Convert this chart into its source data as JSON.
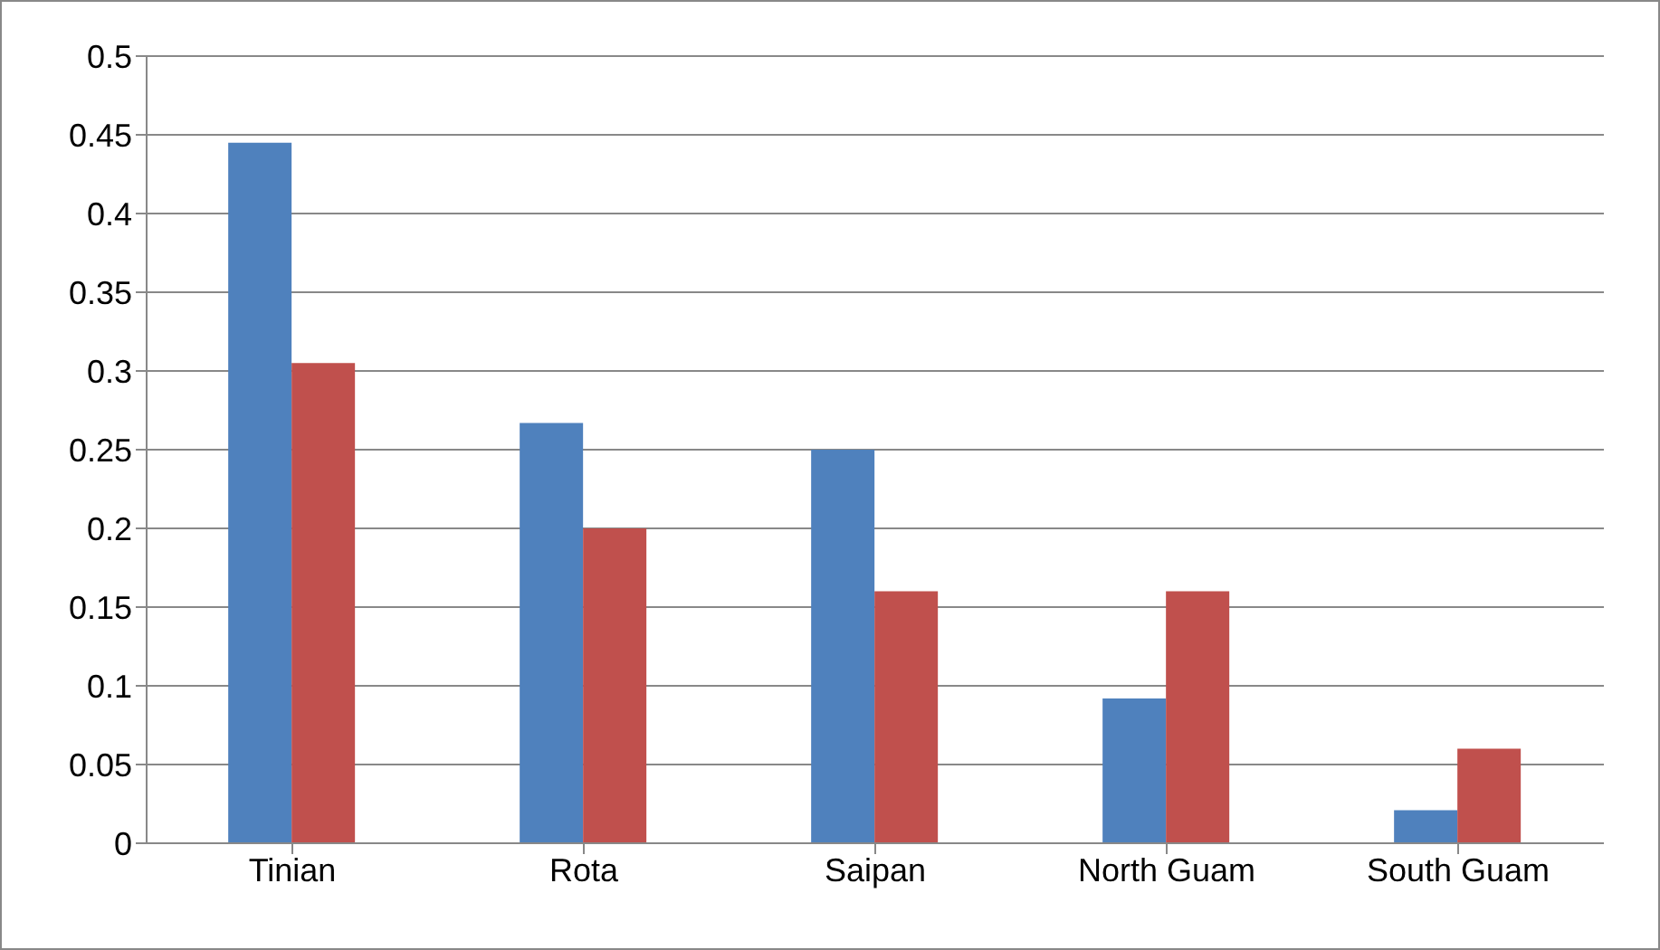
{
  "chart_data": {
    "type": "bar",
    "categories": [
      "Tinian",
      "Rota",
      "Saipan",
      "North Guam",
      "South Guam"
    ],
    "series": [
      {
        "color": "#4f81bd",
        "values": [
          0.445,
          0.267,
          0.25,
          0.092,
          0.021
        ]
      },
      {
        "color": "#c0504d",
        "values": [
          0.305,
          0.2,
          0.16,
          0.16,
          0.06
        ]
      }
    ],
    "ylim": [
      0,
      0.5
    ],
    "yticks": [
      0,
      0.05,
      0.1,
      0.15,
      0.2,
      0.25,
      0.3,
      0.35,
      0.4,
      0.45,
      0.5
    ],
    "grid": "y",
    "legend": false
  }
}
